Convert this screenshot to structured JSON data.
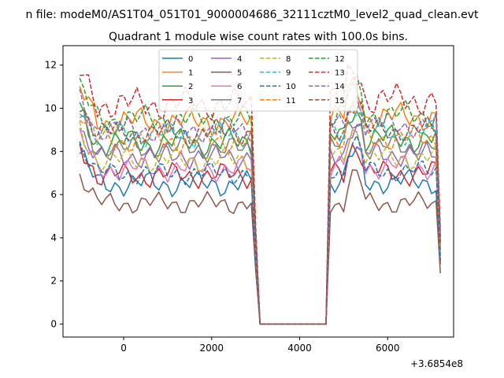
{
  "figure": {
    "suptitle": "n file: modeM0/AS1T04_051T01_9000004686_32111cztM0_level2_quad_clean.evt",
    "title": "Quadrant 1 module wise count rates with 100.0s bins.",
    "offset_label": "+3.6854e8"
  },
  "chart_data": {
    "type": "line",
    "title": "Quadrant 1 module wise count rates with 100.0s bins.",
    "xlabel": "",
    "ylabel": "",
    "x_offset": 368540000,
    "xlim": [
      -1380,
      7500
    ],
    "ylim": [
      -0.6,
      12.9
    ],
    "xticks": [
      0,
      2000,
      4000,
      6000
    ],
    "yticks": [
      0,
      2,
      4,
      6,
      8,
      10,
      12
    ],
    "grid": false,
    "legend_position": "top-center",
    "legend_columns": 4,
    "x_start": -1000,
    "x_step": 100,
    "n_points": 83,
    "gap_start_index": 40,
    "gap_end_index": 57,
    "series": [
      {
        "name": "0",
        "color": "#1f77b4",
        "dash": false,
        "level1": 6.5,
        "level2": 6.6,
        "amp": 0.35,
        "phase": 0.0
      },
      {
        "name": "1",
        "color": "#ff7f0e",
        "dash": false,
        "level1": 9.4,
        "level2": 9.6,
        "amp": 0.4,
        "phase": 1.1
      },
      {
        "name": "2",
        "color": "#2ca02c",
        "dash": false,
        "level1": 8.4,
        "level2": 8.6,
        "amp": 0.4,
        "phase": 2.3
      },
      {
        "name": "3",
        "color": "#d62728",
        "dash": false,
        "level1": 6.9,
        "level2": 7.0,
        "amp": 0.35,
        "phase": 3.1
      },
      {
        "name": "4",
        "color": "#9467bd",
        "dash": false,
        "level1": 7.8,
        "level2": 7.9,
        "amp": 0.35,
        "phase": 4.2
      },
      {
        "name": "5",
        "color": "#8c564b",
        "dash": false,
        "level1": 5.6,
        "level2": 5.6,
        "amp": 0.3,
        "phase": 5.0
      },
      {
        "name": "6",
        "color": "#e377c2",
        "dash": false,
        "level1": 7.2,
        "level2": 7.3,
        "amp": 0.35,
        "phase": 0.7
      },
      {
        "name": "7",
        "color": "#7f7f7f",
        "dash": false,
        "level1": 8.1,
        "level2": 8.2,
        "amp": 0.35,
        "phase": 1.9
      },
      {
        "name": "8",
        "color": "#bcbd22",
        "dash": true,
        "level1": 7.6,
        "level2": 7.7,
        "amp": 0.35,
        "phase": 2.8
      },
      {
        "name": "9",
        "color": "#17becf",
        "dash": true,
        "level1": 8.8,
        "level2": 8.9,
        "amp": 0.35,
        "phase": 3.6
      },
      {
        "name": "10",
        "color": "#1f77b4",
        "dash": true,
        "level1": 7.0,
        "level2": 7.1,
        "amp": 0.3,
        "phase": 4.7
      },
      {
        "name": "11",
        "color": "#ff7f0e",
        "dash": true,
        "level1": 8.5,
        "level2": 8.6,
        "amp": 0.35,
        "phase": 5.5
      },
      {
        "name": "12",
        "color": "#2ca02c",
        "dash": true,
        "level1": 9.5,
        "level2": 9.7,
        "amp": 0.4,
        "phase": 0.4
      },
      {
        "name": "13",
        "color": "#d62728",
        "dash": true,
        "level1": 10.2,
        "level2": 10.4,
        "amp": 0.45,
        "phase": 1.5
      },
      {
        "name": "14",
        "color": "#9467bd",
        "dash": true,
        "level1": 9.0,
        "level2": 9.2,
        "amp": 0.35,
        "phase": 2.6
      },
      {
        "name": "15",
        "color": "#8c564b",
        "dash": true,
        "level1": 8.9,
        "level2": 9.0,
        "amp": 0.35,
        "phase": 3.9
      }
    ]
  }
}
